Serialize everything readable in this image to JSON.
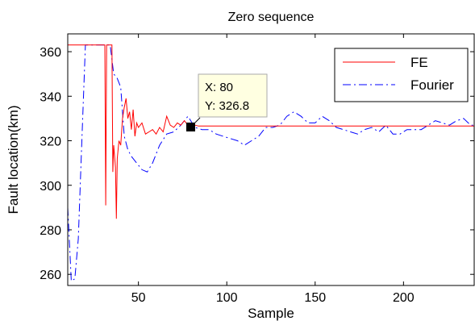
{
  "chart_data": {
    "type": "line",
    "title": "Zero sequence",
    "xlabel": "Sample",
    "ylabel": "Fault location(km)",
    "xlim": [
      10,
      240
    ],
    "ylim": [
      255,
      368
    ],
    "xticks": [
      50,
      100,
      150,
      200
    ],
    "yticks": [
      260,
      280,
      300,
      320,
      340,
      360
    ],
    "grid": false,
    "legend_position": "top-right",
    "series": [
      {
        "name": "FE",
        "color": "#ff0000",
        "dash": "solid",
        "x": [
          10,
          31,
          31.5,
          32,
          33,
          35,
          35.5,
          36,
          37,
          37.5,
          38,
          39,
          40,
          41,
          42,
          43,
          44,
          45,
          46,
          47,
          48,
          49,
          50,
          52,
          54,
          56,
          58,
          60,
          62,
          64,
          66,
          68,
          70,
          72,
          74,
          76,
          78,
          80,
          82,
          84,
          86,
          240
        ],
        "y": [
          363,
          363,
          291,
          363,
          363,
          363,
          306,
          318,
          308,
          285,
          312,
          320,
          318,
          330,
          335,
          339,
          330,
          333,
          325,
          334,
          322,
          328,
          326,
          328,
          323,
          324,
          325,
          323,
          326,
          324,
          331,
          327,
          326,
          328,
          327,
          329,
          327,
          326.8,
          327,
          326.6,
          326.6,
          326.6
        ]
      },
      {
        "name": "Fourier",
        "color": "#0000ff",
        "dash": "dashdot",
        "x": [
          10,
          12,
          14,
          16,
          18,
          20,
          22,
          24,
          26,
          28,
          30,
          32,
          34,
          36,
          38,
          40,
          42,
          44,
          46,
          48,
          50,
          52,
          55,
          58,
          62,
          66,
          70,
          74,
          78,
          82,
          86,
          90,
          94,
          98,
          102,
          106,
          110,
          114,
          118,
          122,
          126,
          130,
          134,
          138,
          142,
          146,
          150,
          154,
          158,
          162,
          166,
          170,
          174,
          178,
          182,
          186,
          190,
          194,
          198,
          202,
          206,
          210,
          214,
          218,
          222,
          226,
          230,
          234,
          238,
          240
        ],
        "y": [
          290,
          257,
          258,
          276,
          320,
          363,
          363,
          363,
          363,
          363,
          363,
          363,
          363,
          350,
          348,
          344,
          322,
          316,
          313,
          311,
          309,
          307,
          306,
          310,
          318,
          323,
          324,
          327,
          331,
          326,
          325,
          325,
          323,
          322,
          321,
          320,
          318,
          320,
          322,
          326,
          326,
          327,
          331,
          333,
          331,
          328,
          328,
          331,
          329,
          326,
          325,
          324,
          323,
          325,
          326,
          324,
          327,
          323,
          323,
          325,
          325,
          325,
          327,
          329,
          328,
          327,
          329,
          330,
          327,
          327
        ]
      }
    ],
    "annotation": {
      "x": 80,
      "y": 326.8,
      "x_text": "X: 80",
      "y_text": "Y: 326.8"
    }
  }
}
